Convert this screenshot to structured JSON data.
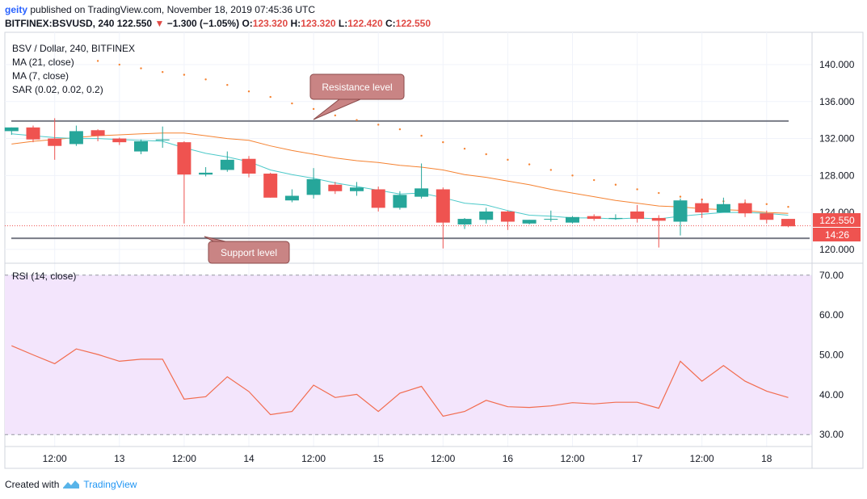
{
  "header": {
    "user": "geity",
    "published_text": "published on TradingView.com, November 18, 2019 07:45:36 UTC",
    "symbol": "BITFINEX:BSVUSD, 240",
    "last": "122.550",
    "change": "−1.300 (−1.05%)",
    "o_label": "O:",
    "o": "123.320",
    "h_label": "H:",
    "h": "123.320",
    "l_label": "L:",
    "l": "122.420",
    "c_label": "C:",
    "c": "122.550"
  },
  "legend": {
    "title": "BSV / Dollar, 240, BITFINEX",
    "ma21": "MA (21, close)",
    "ma7": "MA (7, close)",
    "sar": "SAR (0.02, 0.02, 0.2)",
    "rsi": "RSI (14, close)"
  },
  "annotations": {
    "resistance": "Resistance level",
    "support": "Support level",
    "resistance_price": 133.9,
    "support_price": 121.2
  },
  "price_tag": {
    "value": "122.550",
    "timer": "14:26",
    "price": 122.55
  },
  "colors": {
    "up": "#26a69a",
    "down": "#ef5350",
    "ma21": "#f58231",
    "ma7": "#4cc9c9",
    "sar": "#f58231",
    "rsi": "#f26c4f",
    "rsi_band": "#f3e5fc",
    "level_line": "#787b86",
    "callout": "#c98484"
  },
  "footer": {
    "created_with": "Created with",
    "brand": "TradingView"
  },
  "chart_data": [
    {
      "type": "candlestick",
      "title": "BSV / Dollar, 240, BITFINEX",
      "ylim": [
        118.5,
        143.5
      ],
      "y_ticks": [
        "120.000",
        "124.000",
        "128.000",
        "132.000",
        "136.000",
        "140.000"
      ],
      "y_tick_values": [
        120,
        124,
        128,
        132,
        136,
        140
      ],
      "x_ticks": [
        "12:00",
        "13",
        "12:00",
        "14",
        "12:00",
        "15",
        "12:00",
        "16",
        "12:00",
        "17",
        "12:00",
        "18"
      ],
      "x_tick_index": [
        2,
        5,
        8,
        11,
        14,
        17,
        20,
        23,
        26,
        29,
        32,
        35
      ],
      "candles": [
        {
          "o": 132.8,
          "h": 133.2,
          "l": 132.4,
          "c": 133.2
        },
        {
          "o": 133.2,
          "h": 133.4,
          "l": 131.6,
          "c": 131.9
        },
        {
          "o": 132.0,
          "h": 134.2,
          "l": 129.7,
          "c": 131.2
        },
        {
          "o": 131.4,
          "h": 133.4,
          "l": 131.2,
          "c": 132.8
        },
        {
          "o": 132.9,
          "h": 133.0,
          "l": 131.7,
          "c": 132.3
        },
        {
          "o": 132.0,
          "h": 132.1,
          "l": 131.3,
          "c": 131.6
        },
        {
          "o": 130.6,
          "h": 131.9,
          "l": 130.3,
          "c": 131.7
        },
        {
          "o": 131.8,
          "h": 133.3,
          "l": 131.0,
          "c": 131.9
        },
        {
          "o": 131.6,
          "h": 131.7,
          "l": 122.8,
          "c": 128.1
        },
        {
          "o": 128.1,
          "h": 128.9,
          "l": 127.9,
          "c": 128.3
        },
        {
          "o": 128.6,
          "h": 130.6,
          "l": 128.4,
          "c": 129.7
        },
        {
          "o": 129.8,
          "h": 130.1,
          "l": 127.8,
          "c": 128.2
        },
        {
          "o": 128.2,
          "h": 128.3,
          "l": 125.6,
          "c": 125.6
        },
        {
          "o": 125.3,
          "h": 126.5,
          "l": 125.1,
          "c": 125.8
        },
        {
          "o": 125.9,
          "h": 128.8,
          "l": 125.5,
          "c": 127.6
        },
        {
          "o": 127.0,
          "h": 127.3,
          "l": 126.0,
          "c": 126.3
        },
        {
          "o": 126.3,
          "h": 127.3,
          "l": 125.8,
          "c": 126.7
        },
        {
          "o": 126.5,
          "h": 126.8,
          "l": 124.1,
          "c": 124.5
        },
        {
          "o": 124.5,
          "h": 126.3,
          "l": 124.3,
          "c": 125.9
        },
        {
          "o": 125.7,
          "h": 129.3,
          "l": 125.5,
          "c": 126.6
        },
        {
          "o": 126.5,
          "h": 126.7,
          "l": 120.1,
          "c": 122.9
        },
        {
          "o": 122.7,
          "h": 123.4,
          "l": 122.2,
          "c": 123.3
        },
        {
          "o": 123.2,
          "h": 124.5,
          "l": 122.8,
          "c": 124.1
        },
        {
          "o": 124.1,
          "h": 124.2,
          "l": 122.1,
          "c": 123.0
        },
        {
          "o": 122.8,
          "h": 123.2,
          "l": 122.7,
          "c": 123.2
        },
        {
          "o": 123.3,
          "h": 124.2,
          "l": 123.0,
          "c": 123.3
        },
        {
          "o": 122.9,
          "h": 123.6,
          "l": 122.8,
          "c": 123.5
        },
        {
          "o": 123.6,
          "h": 123.8,
          "l": 123.1,
          "c": 123.3
        },
        {
          "o": 123.4,
          "h": 123.8,
          "l": 123.2,
          "c": 123.4
        },
        {
          "o": 124.1,
          "h": 124.8,
          "l": 122.9,
          "c": 123.3
        },
        {
          "o": 123.4,
          "h": 123.7,
          "l": 120.2,
          "c": 123.1
        },
        {
          "o": 123.0,
          "h": 125.5,
          "l": 121.5,
          "c": 125.3
        },
        {
          "o": 125.0,
          "h": 125.5,
          "l": 123.4,
          "c": 124.0
        },
        {
          "o": 124.0,
          "h": 125.6,
          "l": 124.0,
          "c": 124.9
        },
        {
          "o": 125.0,
          "h": 125.4,
          "l": 123.5,
          "c": 123.9
        },
        {
          "o": 123.9,
          "h": 124.2,
          "l": 122.8,
          "c": 123.2
        },
        {
          "o": 123.3,
          "h": 123.3,
          "l": 122.4,
          "c": 122.5
        }
      ],
      "series": [
        {
          "name": "MA (21, close)",
          "values": [
            131.4,
            131.7,
            131.9,
            132.1,
            132.3,
            132.4,
            132.5,
            132.6,
            132.6,
            132.3,
            132.0,
            131.8,
            131.2,
            130.7,
            130.3,
            129.9,
            129.6,
            129.4,
            129.1,
            128.9,
            128.6,
            128.1,
            127.8,
            127.4,
            127.0,
            126.5,
            126.1,
            125.7,
            125.3,
            125.0,
            124.7,
            124.6,
            124.4,
            124.3,
            124.2,
            124.0,
            123.9
          ]
        },
        {
          "name": "MA (7, close)",
          "values": [
            132.5,
            132.3,
            132.1,
            132.0,
            132.0,
            131.9,
            131.8,
            131.7,
            131.0,
            130.4,
            130.0,
            129.5,
            128.6,
            128.1,
            127.7,
            127.2,
            126.8,
            126.4,
            126.0,
            126.1,
            125.6,
            125.0,
            124.8,
            124.2,
            123.7,
            123.6,
            123.4,
            123.4,
            123.3,
            123.4,
            123.3,
            123.6,
            123.8,
            124.0,
            124.0,
            123.9,
            123.7
          ]
        },
        {
          "name": "SAR (0.02, 0.02, 0.2)",
          "values": [
            null,
            null,
            null,
            null,
            140.4,
            140.0,
            139.6,
            139.2,
            138.9,
            138.4,
            137.8,
            137.1,
            136.5,
            135.8,
            135.2,
            134.5,
            134.0,
            133.5,
            133.0,
            132.3,
            131.6,
            130.9,
            130.3,
            129.7,
            129.2,
            128.6,
            128.0,
            127.5,
            127.0,
            126.5,
            126.1,
            125.7,
            125.4,
            125.2,
            125.0,
            124.9,
            124.6
          ]
        }
      ]
    },
    {
      "type": "line",
      "title": "RSI (14, close)",
      "ylim": [
        27,
        73
      ],
      "y_ticks": [
        "30.00",
        "40.00",
        "50.00",
        "60.00",
        "70.00"
      ],
      "y_tick_values": [
        30,
        40,
        50,
        60,
        70
      ],
      "band": [
        30,
        70
      ],
      "series": [
        {
          "name": "RSI (14, close)",
          "values": [
            52.3,
            50.0,
            47.8,
            51.5,
            50.1,
            48.4,
            48.9,
            48.9,
            38.9,
            39.5,
            44.5,
            40.8,
            35.0,
            35.8,
            42.4,
            39.3,
            40.1,
            35.8,
            40.4,
            42.1,
            34.6,
            35.8,
            38.6,
            37.0,
            36.8,
            37.2,
            38.0,
            37.7,
            38.1,
            38.1,
            36.6,
            48.4,
            43.4,
            47.3,
            43.4,
            40.9,
            39.3
          ]
        }
      ]
    }
  ]
}
